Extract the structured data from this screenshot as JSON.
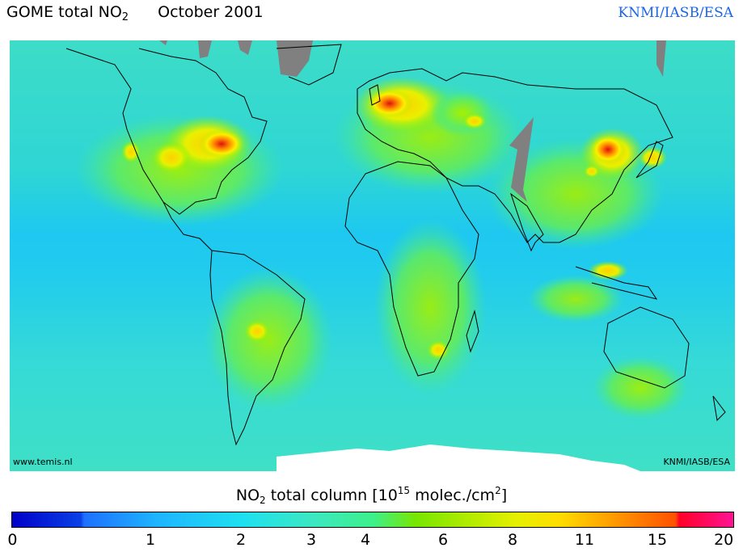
{
  "header": {
    "title_main": "GOME total NO",
    "title_sub": "2",
    "title_date": "October 2001",
    "credit": "KNMI/IASB/ESA"
  },
  "map": {
    "corner_left": "www.temis.nl",
    "corner_right": "KNMI/IASB/ESA",
    "background_color": "#34dcd0",
    "land_outline_color": "#000000",
    "missing_data_color": "#808080",
    "hotspot_regions": [
      "Eastern United States",
      "California",
      "Western Europe",
      "Eastern China",
      "Japan",
      "South Africa (Highveld)",
      "Central Brazil"
    ]
  },
  "colorbar": {
    "label_pre": "NO",
    "label_sub": "2",
    "label_mid": " total column [10",
    "label_sup": "15",
    "label_post": " molec./cm",
    "label_sup2": "2",
    "label_end": "]",
    "ticks": [
      "0",
      "1",
      "2",
      "3",
      "4",
      "6",
      "8",
      "11",
      "15",
      "20"
    ],
    "colors": [
      "#0000c8",
      "#1e90ff",
      "#00d2ff",
      "#3ce6c8",
      "#3cf08c",
      "#78e600",
      "#c8f000",
      "#ffff00",
      "#ffb400",
      "#ff6400",
      "#ff0028",
      "#ff1493"
    ]
  }
}
